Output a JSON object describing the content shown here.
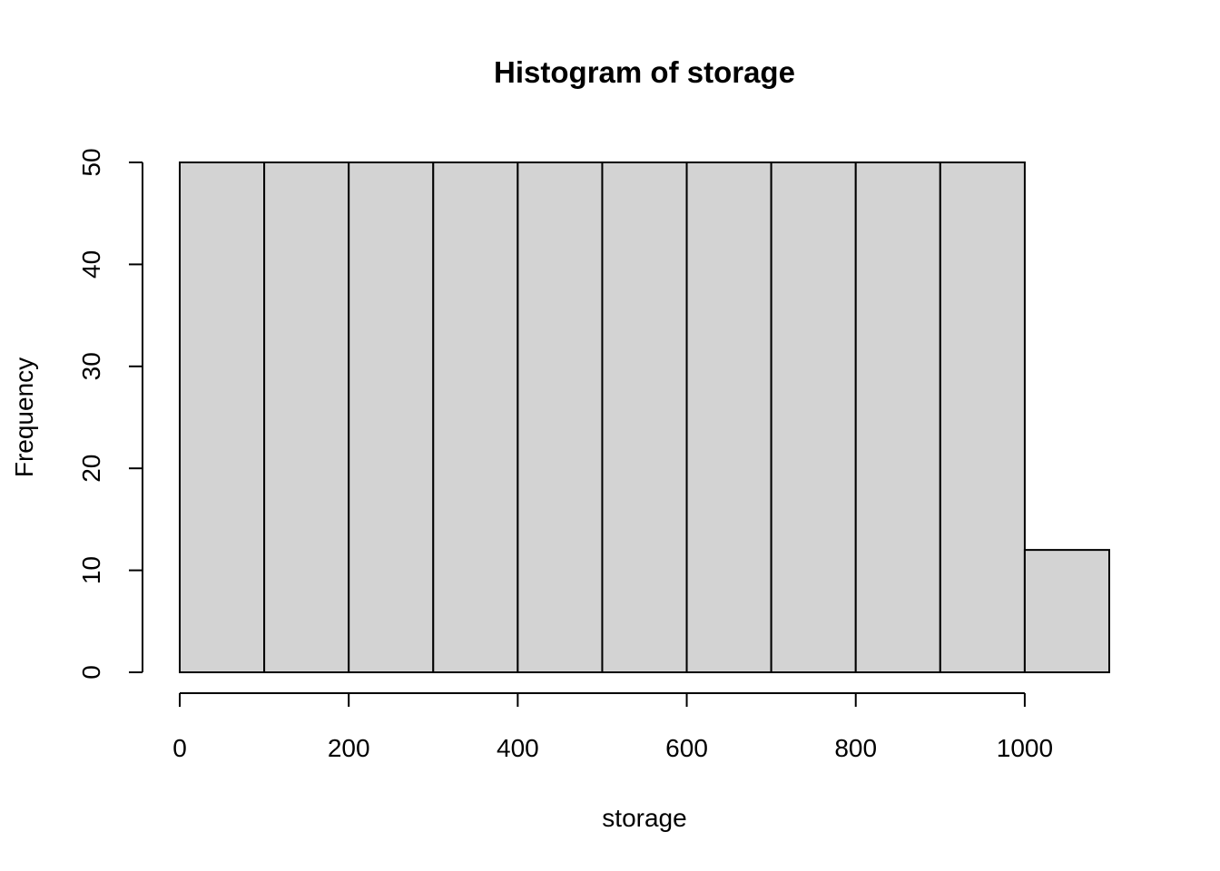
{
  "chart_data": {
    "type": "bar",
    "title": "Histogram of storage",
    "xlabel": "storage",
    "ylabel": "Frequency",
    "bins": [
      {
        "start": 0,
        "end": 100,
        "count": 50
      },
      {
        "start": 100,
        "end": 200,
        "count": 50
      },
      {
        "start": 200,
        "end": 300,
        "count": 50
      },
      {
        "start": 300,
        "end": 400,
        "count": 50
      },
      {
        "start": 400,
        "end": 500,
        "count": 50
      },
      {
        "start": 500,
        "end": 600,
        "count": 50
      },
      {
        "start": 600,
        "end": 700,
        "count": 50
      },
      {
        "start": 700,
        "end": 800,
        "count": 50
      },
      {
        "start": 800,
        "end": 900,
        "count": 50
      },
      {
        "start": 900,
        "end": 1000,
        "count": 50
      },
      {
        "start": 1000,
        "end": 1100,
        "count": 12
      }
    ],
    "xlim": [
      0,
      1100
    ],
    "ylim": [
      0,
      50
    ],
    "x_ticks": [
      0,
      200,
      400,
      600,
      800,
      1000
    ],
    "y_ticks": [
      0,
      10,
      20,
      30,
      40,
      50
    ],
    "grid": false,
    "colors": {
      "bar_fill": "#d3d3d3",
      "bar_stroke": "#000000",
      "axis": "#000000",
      "background": "#ffffff"
    }
  }
}
